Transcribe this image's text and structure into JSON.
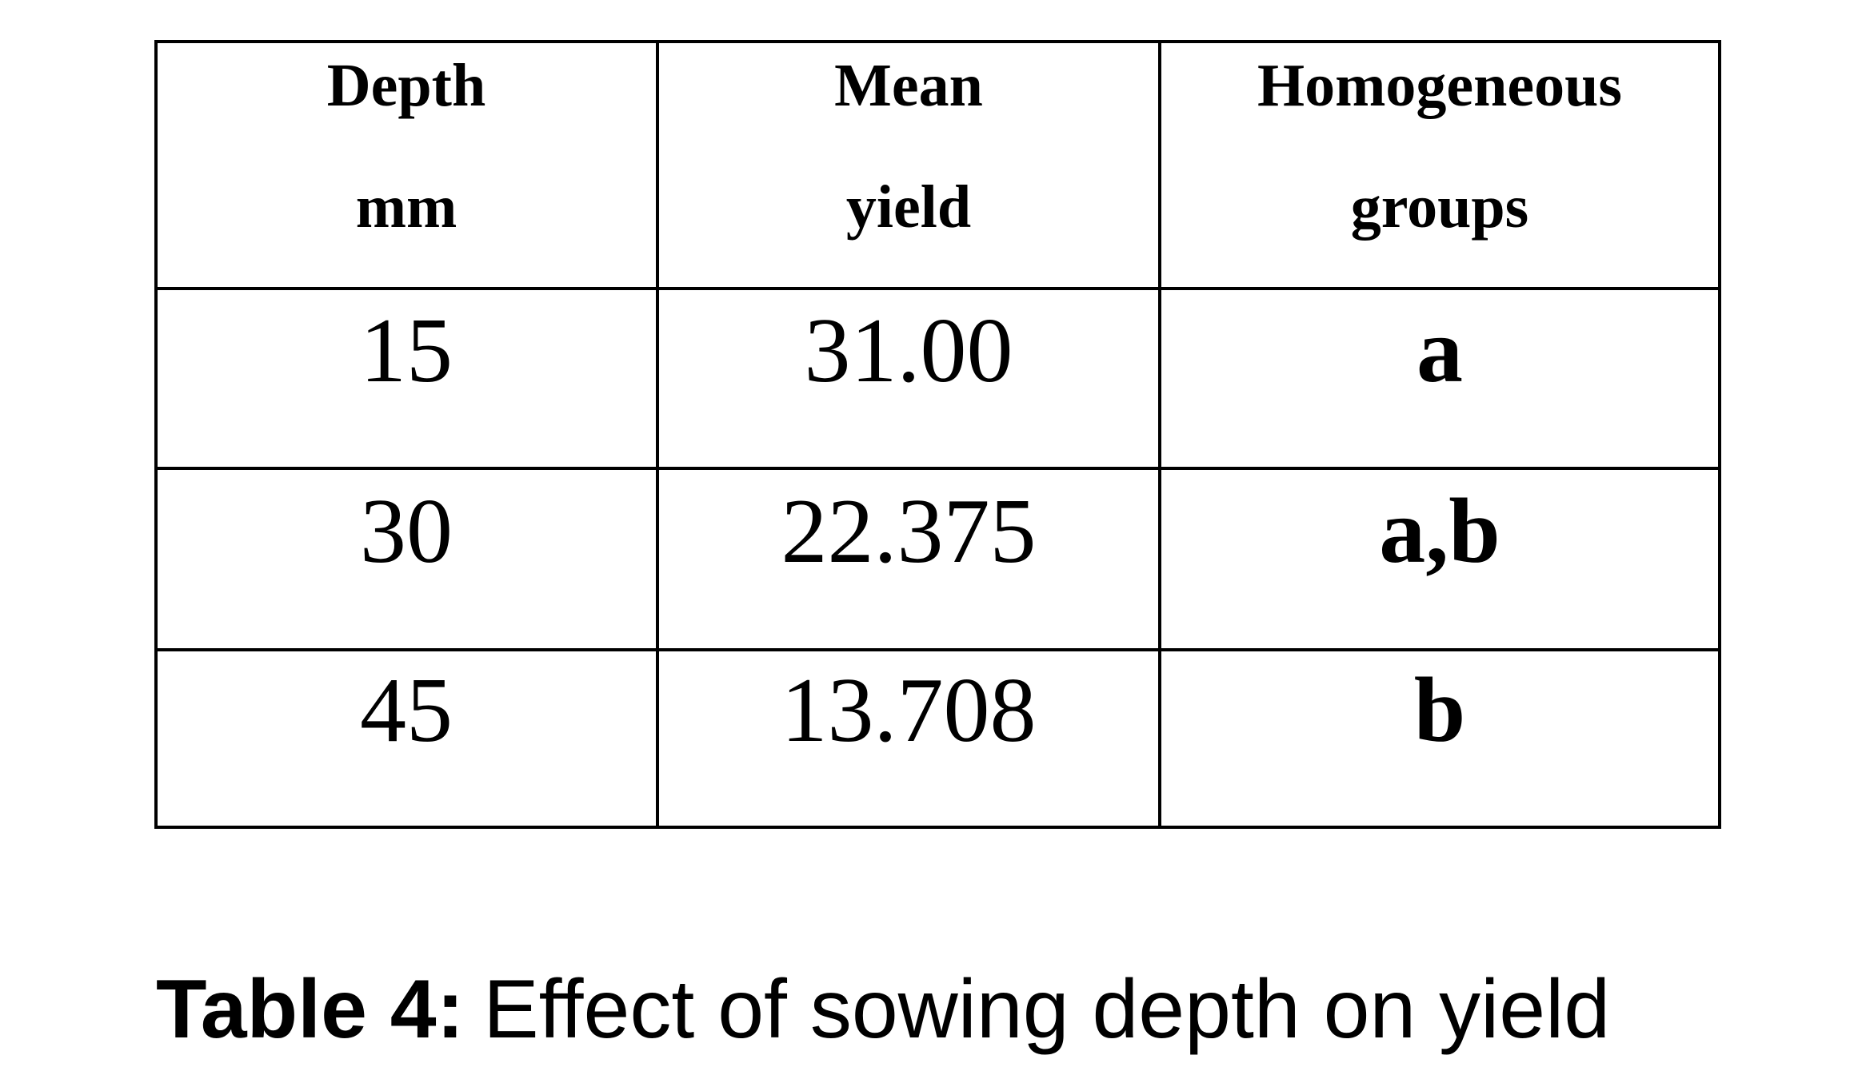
{
  "table": {
    "header": [
      [
        "Depth",
        "mm"
      ],
      [
        "Mean",
        "yield"
      ],
      [
        "Homogeneous",
        "groups"
      ]
    ],
    "rows": [
      [
        "15",
        "31.00",
        "a"
      ],
      [
        "30",
        "22.375",
        "a,b"
      ],
      [
        "45",
        "13.708",
        "b"
      ]
    ]
  },
  "caption": {
    "label": "Table 4:",
    "text": "Effect of sowing depth on yield"
  }
}
